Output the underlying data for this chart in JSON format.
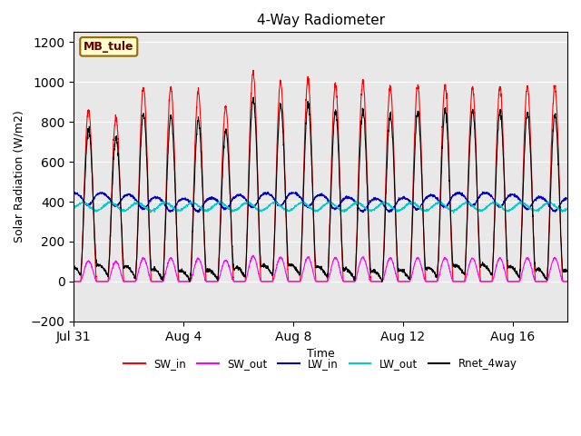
{
  "title": "4-Way Radiometer",
  "xlabel": "Time",
  "ylabel": "Solar Radiation (W/m2)",
  "ylim": [
    -200,
    1250
  ],
  "yticks": [
    -200,
    0,
    200,
    400,
    600,
    800,
    1000,
    1200
  ],
  "site_label": "MB_tule",
  "x_tick_positions": [
    0,
    4,
    8,
    12,
    16
  ],
  "x_tick_labels": [
    "Jul 31",
    "Aug 4",
    "Aug 8",
    "Aug 12",
    "Aug 16"
  ],
  "legend_entries": [
    "SW_in",
    "SW_out",
    "LW_in",
    "LW_out",
    "Rnet_4way"
  ],
  "colors": {
    "SW_in": "#ff0000",
    "SW_out": "#ff00ff",
    "LW_in": "#0000cc",
    "LW_out": "#00cccc",
    "Rnet_4way": "#000000"
  },
  "background_color": "#e8e8e8",
  "n_days": 18,
  "samples_per_day": 144,
  "peak_sw_in": [
    860,
    820,
    970,
    975,
    950,
    875,
    1050,
    1000,
    1010,
    985,
    1000,
    975,
    985,
    980,
    970,
    975,
    980,
    975
  ]
}
